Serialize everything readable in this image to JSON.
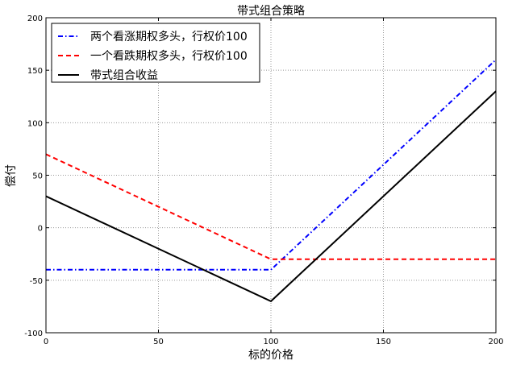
{
  "chart_data": {
    "type": "line",
    "title": "带式组合策略",
    "xlabel": "标的价格",
    "ylabel": "偿付",
    "xlim": [
      0,
      200
    ],
    "ylim": [
      -100,
      200
    ],
    "xticks": [
      0,
      50,
      100,
      150,
      200
    ],
    "yticks": [
      -100,
      -50,
      0,
      50,
      100,
      150,
      200
    ],
    "grid": true,
    "legend_position": "top-left",
    "series": [
      {
        "name": "两个看涨期权多头，行权价100",
        "color": "#0000ff",
        "style": "dash-dot",
        "x": [
          0,
          100,
          200
        ],
        "y": [
          -40,
          -40,
          160
        ]
      },
      {
        "name": "一个看跌期权多头，行权价100",
        "color": "#ff0000",
        "style": "dashed",
        "x": [
          0,
          100,
          200
        ],
        "y": [
          70,
          -30,
          -30
        ]
      },
      {
        "name": "带式组合收益",
        "color": "#000000",
        "style": "solid",
        "x": [
          0,
          100,
          200
        ],
        "y": [
          30,
          -70,
          130
        ]
      }
    ]
  }
}
